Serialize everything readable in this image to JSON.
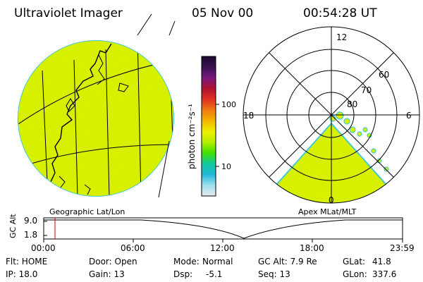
{
  "header": {
    "instrument": "Ultraviolet Imager",
    "date": "05 Nov 00",
    "time": "00:54:28 UT"
  },
  "colors": {
    "image_fill": "#d6f000",
    "image_noise": "#b5e300",
    "rim": "#43c8d6"
  },
  "colorbar": {
    "unit_label": "photon cm⁻²s⁻¹",
    "ticks": [
      "100",
      "10"
    ],
    "stops": [
      "#1c0a2e",
      "#3a1050",
      "#7a1a80",
      "#b01230",
      "#e0301f",
      "#f07a10",
      "#f3b600",
      "#eef000",
      "#b6ee00",
      "#3ce000",
      "#10c8a0",
      "#20b8d8",
      "#9fe0ee",
      "#e6eaee"
    ]
  },
  "geo_panel": {
    "label": "Geographic Lat/Lon"
  },
  "polar_panel": {
    "label": "Apex MLat/MLT",
    "mlt_labels": {
      "top": "12",
      "left": "18",
      "right": "6",
      "bottom": "0"
    },
    "lat_labels": [
      "60",
      "70",
      "80"
    ]
  },
  "altitude_plot": {
    "ylabel": "GC Alt",
    "yticks": [
      "9.0",
      "1.8"
    ],
    "xticks": [
      "00:00",
      "06:00",
      "12:00",
      "18:00",
      "23:59"
    ],
    "current_time_marker": "00:54"
  },
  "status": {
    "flt": "Flt: HOME",
    "ip": "IP: 18.0",
    "door": "Door: Open",
    "gain": "Gain: 13",
    "mode_label": "Mode:",
    "mode_value": "Normal",
    "dsp_label": "Dsp:",
    "dsp_value": "-5.1",
    "gc_alt": "GC Alt: 7.9 Re",
    "seq": "Seq: 13",
    "glat_label": "GLat:",
    "glat_value": "41.8",
    "glon_label": "GLon:",
    "glon_value": "337.6"
  }
}
